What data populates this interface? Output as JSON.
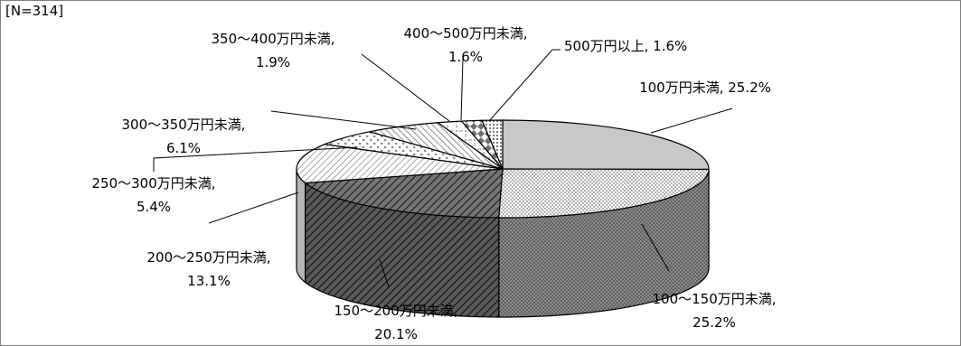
{
  "chart_data": {
    "type": "pie",
    "note": "[N=314]",
    "title": "",
    "slices": [
      {
        "label": "100万円未満",
        "value": 25.2,
        "pct_label": "25.2%"
      },
      {
        "label": "100～150万円未満",
        "value": 25.2,
        "pct_label": "25.2%"
      },
      {
        "label": "150～200万円未満",
        "value": 20.1,
        "pct_label": "20.1%"
      },
      {
        "label": "200～250万円未満",
        "value": 13.1,
        "pct_label": "13.1%"
      },
      {
        "label": "250～300万円未満",
        "value": 5.4,
        "pct_label": "5.4%"
      },
      {
        "label": "300～350万円未満",
        "value": 6.1,
        "pct_label": "6.1%"
      },
      {
        "label": "350～400万円未満",
        "value": 1.9,
        "pct_label": "1.9%"
      },
      {
        "label": "400～500万円未満",
        "value": 1.6,
        "pct_label": "1.6%"
      },
      {
        "label": "500万円以上",
        "value": 1.6,
        "pct_label": "1.6%"
      }
    ],
    "legend": "none"
  }
}
